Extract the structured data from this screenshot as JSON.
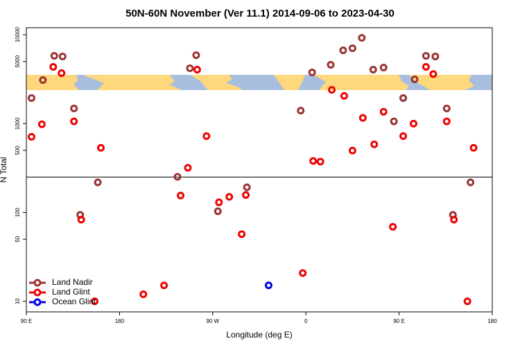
{
  "chart_data": {
    "type": "scatter",
    "title": "50N-60N November (Ver 11.1)   2014-09-06 to 2023-04-30",
    "x_label": "Longitude (deg E)",
    "y_label": "N Total",
    "log_y": true,
    "legend": "bottomleft",
    "reference_line": 250,
    "xlim": [
      90,
      540
    ],
    "xticks": [
      {
        "value": 90,
        "label": "90 E"
      },
      180,
      {
        "value": 270,
        "label": "90 W"
      },
      {
        "value": 360,
        "label": "0"
      },
      {
        "value": 450,
        "label": "90 E"
      },
      {
        "value": 540,
        "label": "180"
      }
    ],
    "ylim": [
      7.6,
      12000
    ],
    "yticks": [
      10,
      50,
      100,
      500,
      1000,
      5000,
      10000
    ],
    "series": [
      {
        "name": "Land Nadir",
        "color": "#993333",
        "x": [
          95,
          106,
          117,
          125,
          136,
          142,
          159,
          236,
          248,
          254,
          275,
          303,
          355,
          366,
          384,
          396,
          405,
          414,
          425,
          435,
          445,
          454,
          465,
          476,
          485,
          496,
          502,
          519
        ],
        "values": [
          1940,
          3090,
          5790,
          5700,
          1480,
          94,
          218,
          252,
          4200,
          5890,
          103,
          192,
          1400,
          3770,
          4590,
          6680,
          7050,
          9220,
          4050,
          4270,
          1060,
          1940,
          3150,
          5790,
          5700,
          1480,
          94,
          218
        ]
      },
      {
        "name": "Land Glint",
        "color": "#ee0000",
        "x": [
          95,
          105,
          116,
          124,
          136,
          143,
          156,
          162,
          203,
          223,
          239,
          246,
          255,
          264,
          276,
          286,
          298,
          302,
          357,
          367,
          374,
          385,
          397,
          405,
          415,
          426,
          435,
          444,
          454,
          464,
          476,
          483,
          496,
          503,
          516,
          522
        ],
        "values": [
          711,
          982,
          4350,
          3700,
          1060,
          83,
          10,
          534,
          12,
          15.1,
          155,
          318,
          4050,
          723,
          130,
          150,
          57,
          157,
          20.8,
          380,
          373,
          2400,
          2050,
          497,
          1160,
          584,
          1360,
          69,
          723,
          1000,
          4350,
          3610,
          1060,
          83,
          10,
          534
        ]
      },
      {
        "name": "Ocean Glint",
        "color": "#0000dd",
        "x": [
          324
        ],
        "values": [
          15.1
        ]
      }
    ]
  }
}
